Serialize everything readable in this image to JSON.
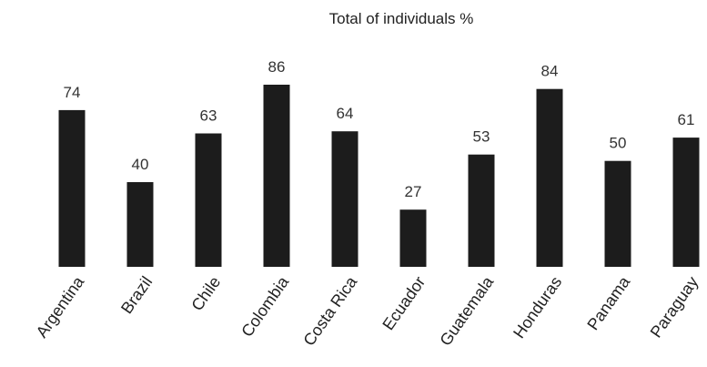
{
  "chart_data": {
    "type": "bar",
    "title": "Total of individuals %",
    "xlabel": "",
    "ylabel": "",
    "categories": [
      "Argentina",
      "Brazil",
      "Chile",
      "Colombia",
      "Costa Rica",
      "Ecuador",
      "Guatemala",
      "Honduras",
      "Panama",
      "Paraguay"
    ],
    "values": [
      74,
      40,
      63,
      86,
      64,
      27,
      53,
      84,
      50,
      61
    ],
    "ylim": [
      0,
      86
    ],
    "grid": false,
    "legend": "none",
    "bar_color": "#1c1c1c"
  }
}
